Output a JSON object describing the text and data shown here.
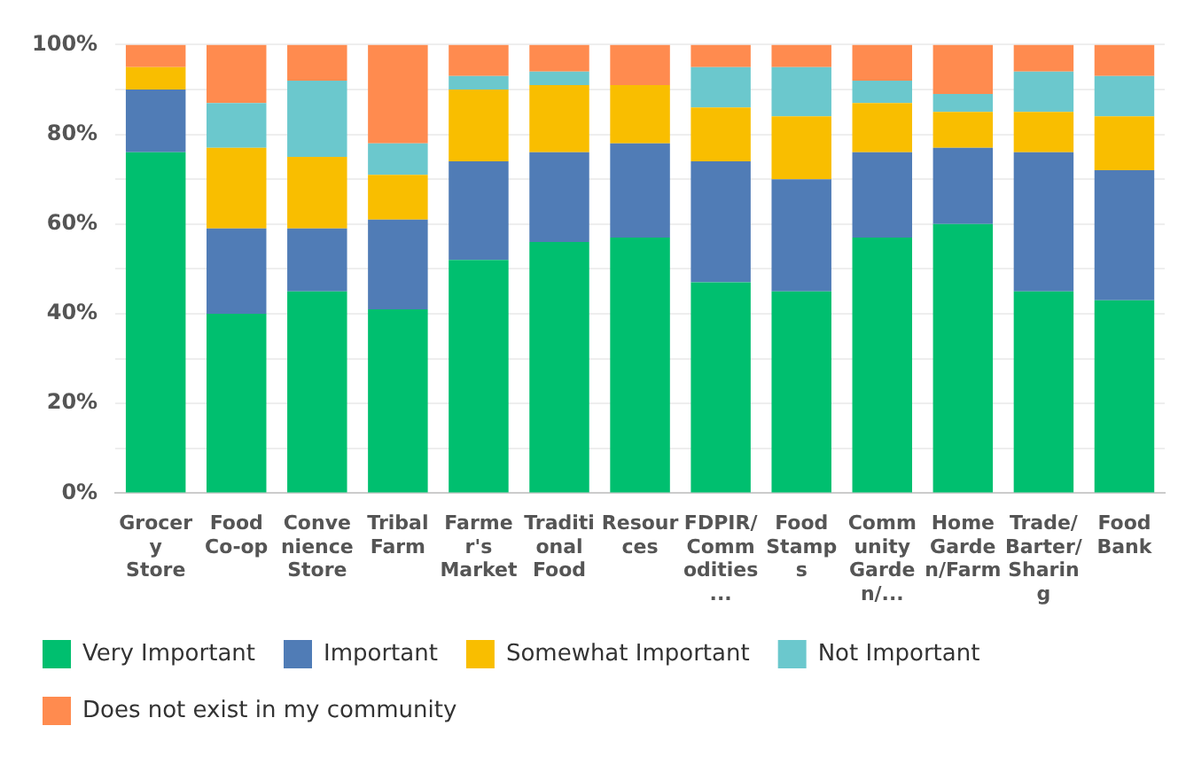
{
  "chart_data": {
    "type": "bar",
    "stacked": true,
    "categories": [
      "Grocery Store",
      "Food Co-op",
      "Convenience Store",
      "Tribal Farm",
      "Farmer's Market",
      "Traditional Food",
      "Resources",
      "FDPIR/Commodities...",
      "Food Stamps",
      "Community Garden/...",
      "Home Garden/Farm",
      "Trade/Barter/Sharing",
      "Food Bank"
    ],
    "series": [
      {
        "name": "Very Important",
        "color": "#00bf6f",
        "values": [
          76,
          40,
          45,
          41,
          52,
          56,
          57,
          47,
          45,
          57,
          60,
          45,
          43
        ]
      },
      {
        "name": "Important",
        "color": "#507cb6",
        "values": [
          14,
          19,
          14,
          20,
          22,
          20,
          21,
          27,
          25,
          19,
          17,
          31,
          29
        ]
      },
      {
        "name": "Somewhat Important",
        "color": "#f9be00",
        "values": [
          5,
          18,
          16,
          10,
          16,
          15,
          13,
          12,
          14,
          11,
          8,
          9,
          12
        ]
      },
      {
        "name": "Not Important",
        "color": "#6bc8cd",
        "values": [
          0,
          10,
          17,
          7,
          3,
          3,
          0,
          9,
          11,
          5,
          4,
          9,
          9
        ]
      },
      {
        "name": "Does not exist in my community",
        "color": "#ff8b4f",
        "values": [
          5,
          13,
          8,
          22,
          7,
          6,
          9,
          5,
          5,
          8,
          11,
          6,
          7
        ]
      }
    ],
    "ylim": [
      0,
      100
    ],
    "yticks": [
      {
        "value": 0,
        "label": "0%"
      },
      {
        "value": 10,
        "label": null
      },
      {
        "value": 20,
        "label": "20%"
      },
      {
        "value": 30,
        "label": null
      },
      {
        "value": 40,
        "label": "40%"
      },
      {
        "value": 50,
        "label": null
      },
      {
        "value": 60,
        "label": "60%"
      },
      {
        "value": 70,
        "label": null
      },
      {
        "value": 80,
        "label": "80%"
      },
      {
        "value": 90,
        "label": null
      },
      {
        "value": 100,
        "label": "100%"
      }
    ],
    "grid": "y",
    "legend": "bottom"
  }
}
